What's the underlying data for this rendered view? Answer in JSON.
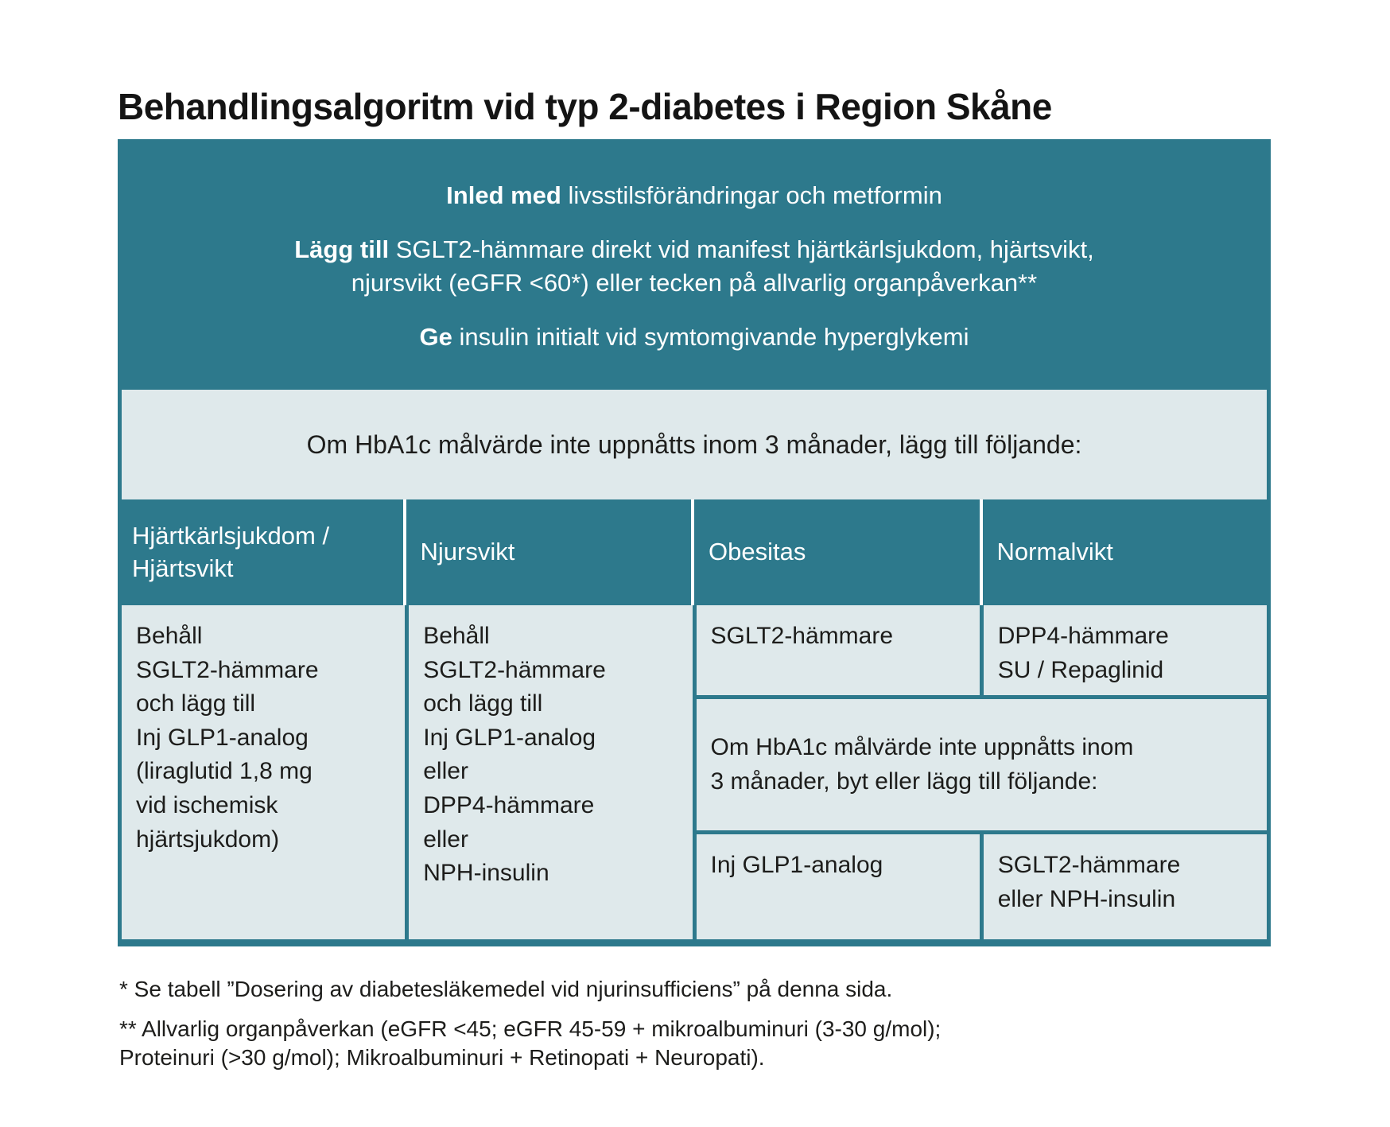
{
  "title": "Behandlingsalgoritm vid typ 2-diabetes i Region Skåne",
  "colors": {
    "teal": "#2d798c",
    "light_cell": "#dfe9eb",
    "text_dark": "#1d1d1b",
    "text_on_teal": "#ffffff"
  },
  "intro": {
    "p1": {
      "lead": "Inled med",
      "rest": " livsstilsförändringar och metformin"
    },
    "p2": {
      "lead": "Lägg till",
      "rest": " SGLT2-hämmare direkt vid manifest hjärtkärlsjukdom, hjärtsvikt,\nnjursvikt (eGFR <60*) eller tecken på allvarlig organpåverkan**"
    },
    "p3": {
      "lead": "Ge",
      "rest": " insulin initialt vid symtomgivande hyperglykemi"
    }
  },
  "band": {
    "text": "Om HbA1c målvärde inte uppnåtts inom 3 månader, lägg till följande:"
  },
  "table": {
    "columns": [
      {
        "header": "Hjärtkärlsjukdom /\nHjärtsvikt"
      },
      {
        "header": "Njursvikt"
      },
      {
        "header": "Obesitas"
      },
      {
        "header": "Normalvikt"
      }
    ],
    "cells": {
      "cvd_hf": "Behåll\nSGLT2-hämmare\noch lägg till\nInj GLP1-analog\n(liraglutid 1,8 mg\nvid ischemisk\nhjärtsjukdom)",
      "renal": "Behåll\nSGLT2-hämmare\noch lägg till\nInj GLP1-analog\neller\nDPP4-hämmare\neller\nNPH-insulin",
      "obesity_first": "SGLT2-hämmare",
      "normal_first": "DPP4-hämmare\nSU / Repaglinid",
      "escalation_note": "Om HbA1c målvärde inte uppnåtts inom\n3 månader, byt eller lägg till följande:",
      "obesity_second": "Inj GLP1-analog",
      "normal_second": "SGLT2-hämmare\neller NPH-insulin"
    }
  },
  "footnotes": [
    "* Se tabell ”Dosering av diabetesläkemedel vid njurinsufficiens” på denna sida.",
    "** Allvarlig organpåverkan (eGFR <45; eGFR 45-59 + mikroalbuminuri (3-30 g/mol);\nProteinuri (>30 g/mol); Mikroalbuminuri + Retinopati + Neuropati)."
  ]
}
